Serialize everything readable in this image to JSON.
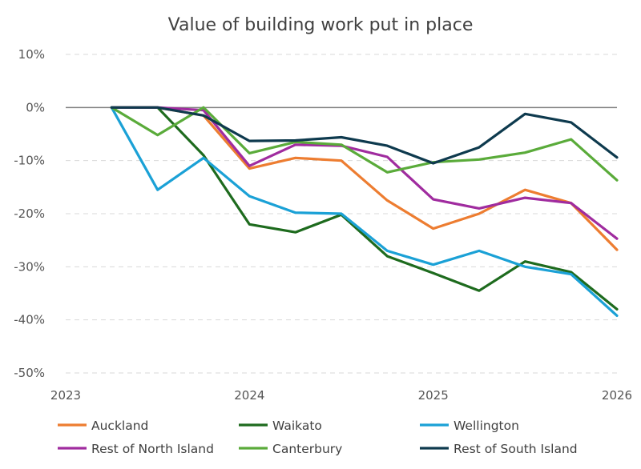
{
  "chart_data": {
    "type": "line",
    "title": "Value of building work put in place",
    "xlabel": "",
    "ylabel": "",
    "x_ticks": [
      "2023",
      "2024",
      "2025",
      "2026"
    ],
    "y_ticks": [
      "10%",
      "0%",
      "-10%",
      "-20%",
      "-30%",
      "-40%",
      "-50%"
    ],
    "xlim": [
      2023.0,
      2026.0
    ],
    "ylim": [
      -50,
      10
    ],
    "grid": true,
    "legend_position": "bottom",
    "x": [
      2023.25,
      2023.5,
      2023.75,
      2024.0,
      2024.25,
      2024.5,
      2024.75,
      2025.0,
      2025.25,
      2025.5,
      2025.75,
      2026.0
    ],
    "series": [
      {
        "name": "Auckland",
        "color": "#ed7d31",
        "values": [
          0,
          0,
          -1.5,
          -11.5,
          -9.5,
          -10,
          -17.5,
          -22.8,
          -20,
          -15.5,
          -18,
          -26.8
        ]
      },
      {
        "name": "Waikato",
        "color": "#1e6b1e",
        "values": [
          0,
          0,
          -9,
          -22,
          -23.5,
          -20.2,
          -28,
          -31.2,
          -34.5,
          -29,
          -31,
          -38
        ]
      },
      {
        "name": "Wellington",
        "color": "#1ba1d6",
        "values": [
          0,
          -15.5,
          -9.5,
          -16.7,
          -19.8,
          -20,
          -27,
          -29.6,
          -27,
          -30,
          -31.4,
          -39.2
        ]
      },
      {
        "name": "Rest of North Island",
        "color": "#a02c9f",
        "values": [
          0,
          0,
          -0.5,
          -11,
          -7,
          -7.2,
          -9.3,
          -17.3,
          -19,
          -17,
          -18,
          -24.7
        ]
      },
      {
        "name": "Canterbury",
        "color": "#5aab3a",
        "values": [
          0,
          -5.2,
          0,
          -8.6,
          -6.5,
          -7,
          -12.2,
          -10.3,
          -9.8,
          -8.5,
          -6,
          -13.7
        ]
      },
      {
        "name": "Rest of South Island",
        "color": "#0e3a4e",
        "values": [
          0,
          0,
          -1.5,
          -6.3,
          -6.2,
          -5.6,
          -7.2,
          -10.5,
          -7.5,
          -1.2,
          -2.8,
          -9.4
        ]
      }
    ]
  }
}
